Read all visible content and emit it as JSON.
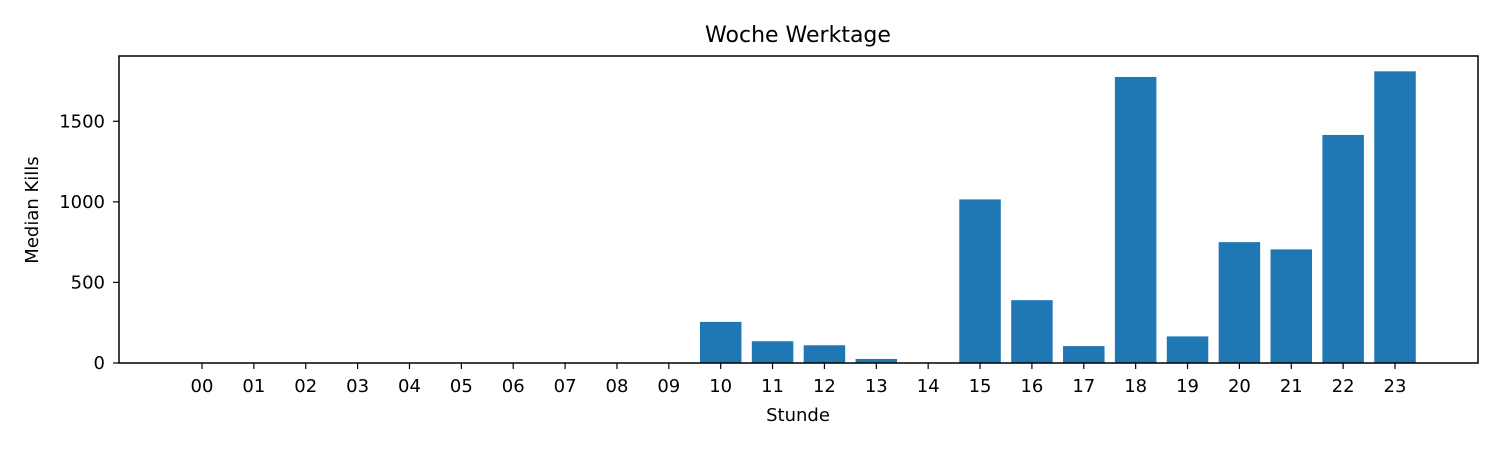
{
  "chart_data": {
    "type": "bar",
    "title": "Woche Werktage",
    "xlabel": "Stunde",
    "ylabel": "Median Kills",
    "categories": [
      "00",
      "01",
      "02",
      "03",
      "04",
      "05",
      "06",
      "07",
      "08",
      "09",
      "10",
      "11",
      "12",
      "13",
      "14",
      "15",
      "16",
      "17",
      "18",
      "19",
      "20",
      "21",
      "22",
      "23"
    ],
    "values": [
      0,
      0,
      0,
      0,
      0,
      0,
      0,
      0,
      0,
      0,
      255,
      135,
      110,
      25,
      0,
      1015,
      390,
      105,
      1775,
      165,
      750,
      705,
      1415,
      1810
    ],
    "ylim": [
      0,
      1905
    ],
    "yticks": [
      0,
      500,
      1000,
      1500
    ],
    "grid": false,
    "legend": "none",
    "bar_color": "#1f77b4"
  }
}
